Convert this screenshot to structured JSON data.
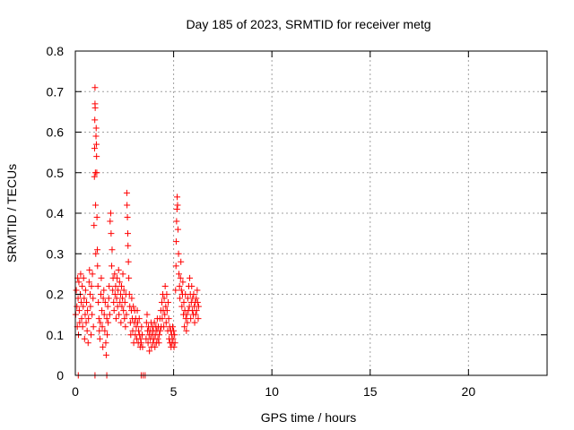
{
  "chart_data": {
    "type": "scatter",
    "title": "Day 185 of 2023, SRMTID for receiver metg",
    "xlabel": "GPS time / hours",
    "ylabel": "SRMTID / TECUs",
    "xlim": [
      0,
      24
    ],
    "ylim": [
      0,
      0.8
    ],
    "x_ticks": [
      0,
      5,
      10,
      15,
      20
    ],
    "x_tick_labels": [
      "0",
      "5",
      "10",
      "15",
      "20"
    ],
    "y_ticks": [
      0,
      0.1,
      0.2,
      0.3,
      0.4,
      0.5,
      0.6,
      0.7,
      0.8
    ],
    "y_tick_labels": [
      "0",
      "0.1",
      "0.2",
      "0.3",
      "0.4",
      "0.5",
      "0.6",
      "0.7",
      "0.8"
    ],
    "grid": true,
    "marker": "+",
    "series": [
      {
        "name": "SRMTID",
        "color": "#ff0000",
        "points": [
          [
            0.02,
            0.15
          ],
          [
            0.05,
            0.21
          ],
          [
            0.08,
            0.17
          ],
          [
            0.1,
            0.12
          ],
          [
            0.12,
            0.24
          ],
          [
            0.14,
            0.19
          ],
          [
            0.16,
            0.1
          ],
          [
            0.18,
            0.23
          ],
          [
            0.2,
            0.16
          ],
          [
            0.22,
            0.13
          ],
          [
            0.25,
            0.2
          ],
          [
            0.27,
            0.25
          ],
          [
            0.3,
            0.18
          ],
          [
            0.32,
            0.14
          ],
          [
            0.35,
            0.22
          ],
          [
            0.37,
            0.12
          ],
          [
            0.4,
            0.17
          ],
          [
            0.42,
            0.24
          ],
          [
            0.45,
            0.19
          ],
          [
            0.47,
            0.09
          ],
          [
            0.5,
            0.15
          ],
          [
            0.52,
            0.21
          ],
          [
            0.55,
            0.13
          ],
          [
            0.57,
            0.18
          ],
          [
            0.6,
            0.11
          ],
          [
            0.62,
            0.16
          ],
          [
            0.65,
            0.08
          ],
          [
            0.67,
            0.14
          ],
          [
            0.7,
            0.23
          ],
          [
            0.72,
            0.26
          ],
          [
            0.75,
            0.2
          ],
          [
            0.77,
            0.17
          ],
          [
            0.8,
            0.1
          ],
          [
            0.82,
            0.22
          ],
          [
            0.85,
            0.15
          ],
          [
            0.87,
            0.25
          ],
          [
            0.9,
            0.19
          ],
          [
            0.92,
            0.12
          ],
          [
            0.95,
            0.37
          ],
          [
            0.97,
            0.49
          ],
          [
            0.98,
            0.56
          ],
          [
            0.99,
            0.63
          ],
          [
            1.0,
            0.67
          ],
          [
            1.0,
            0.71
          ],
          [
            1.01,
            0.66
          ],
          [
            1.02,
            0.5
          ],
          [
            1.03,
            0.42
          ],
          [
            1.04,
            0.3
          ],
          [
            1.05,
            0.59
          ],
          [
            1.06,
            0.61
          ],
          [
            1.07,
            0.57
          ],
          [
            1.08,
            0.54
          ],
          [
            1.09,
            0.5
          ],
          [
            1.1,
            0.39
          ],
          [
            1.12,
            0.31
          ],
          [
            1.13,
            0.27
          ],
          [
            1.15,
            0.22
          ],
          [
            1.17,
            0.18
          ],
          [
            1.2,
            0.14
          ],
          [
            1.22,
            0.11
          ],
          [
            1.25,
            0.09
          ],
          [
            1.27,
            0.13
          ],
          [
            1.3,
            0.2
          ],
          [
            1.32,
            0.24
          ],
          [
            1.35,
            0.16
          ],
          [
            1.37,
            0.12
          ],
          [
            1.4,
            0.07
          ],
          [
            1.42,
            0.19
          ],
          [
            1.45,
            0.21
          ],
          [
            1.47,
            0.15
          ],
          [
            1.5,
            0.11
          ],
          [
            1.52,
            0.18
          ],
          [
            1.55,
            0.08
          ],
          [
            1.57,
            0.05
          ],
          [
            1.6,
            0.14
          ],
          [
            1.62,
            0.1
          ],
          [
            1.65,
            0.17
          ],
          [
            1.67,
            0.13
          ],
          [
            1.7,
            0.19
          ],
          [
            1.72,
            0.22
          ],
          [
            1.75,
            0.15
          ],
          [
            1.77,
            0.38
          ],
          [
            1.8,
            0.4
          ],
          [
            1.82,
            0.35
          ],
          [
            1.85,
            0.27
          ],
          [
            1.87,
            0.31
          ],
          [
            1.9,
            0.21
          ],
          [
            1.92,
            0.24
          ],
          [
            1.95,
            0.18
          ],
          [
            1.97,
            0.16
          ],
          [
            2.0,
            0.25
          ],
          [
            2.02,
            0.2
          ],
          [
            2.05,
            0.22
          ],
          [
            2.07,
            0.14
          ],
          [
            2.1,
            0.19
          ],
          [
            2.12,
            0.24
          ],
          [
            2.15,
            0.17
          ],
          [
            2.17,
            0.21
          ],
          [
            2.2,
            0.26
          ],
          [
            2.22,
            0.15
          ],
          [
            2.25,
            0.23
          ],
          [
            2.27,
            0.18
          ],
          [
            2.3,
            0.2
          ],
          [
            2.32,
            0.13
          ],
          [
            2.35,
            0.22
          ],
          [
            2.37,
            0.17
          ],
          [
            2.4,
            0.19
          ],
          [
            2.42,
            0.25
          ],
          [
            2.45,
            0.16
          ],
          [
            2.47,
            0.21
          ],
          [
            2.5,
            0.14
          ],
          [
            2.52,
            0.18
          ],
          [
            2.55,
            0.12
          ],
          [
            2.57,
            0.2
          ],
          [
            2.6,
            0.15
          ],
          [
            2.62,
            0.45
          ],
          [
            2.63,
            0.42
          ],
          [
            2.65,
            0.39
          ],
          [
            2.67,
            0.35
          ],
          [
            2.68,
            0.32
          ],
          [
            2.7,
            0.28
          ],
          [
            2.72,
            0.24
          ],
          [
            2.75,
            0.2
          ],
          [
            2.77,
            0.17
          ],
          [
            2.8,
            0.13
          ],
          [
            2.82,
            0.1
          ],
          [
            2.85,
            0.16
          ],
          [
            2.87,
            0.19
          ],
          [
            2.9,
            0.14
          ],
          [
            2.92,
            0.11
          ],
          [
            2.95,
            0.17
          ],
          [
            2.97,
            0.08
          ],
          [
            3.0,
            0.13
          ],
          [
            3.02,
            0.16
          ],
          [
            3.05,
            0.1
          ],
          [
            3.07,
            0.14
          ],
          [
            3.1,
            0.12
          ],
          [
            3.12,
            0.09
          ],
          [
            3.15,
            0.16
          ],
          [
            3.17,
            0.13
          ],
          [
            3.2,
            0.08
          ],
          [
            3.22,
            0.11
          ],
          [
            3.25,
            0.14
          ],
          [
            3.27,
            0.1
          ],
          [
            3.3,
            0.07
          ],
          [
            3.32,
            0.09
          ],
          [
            3.35,
            0.08
          ],
          [
            3.37,
            0.12
          ],
          [
            3.4,
            0.1
          ],
          [
            3.42,
            0.07
          ],
          [
            3.6,
            0.09
          ],
          [
            3.62,
            0.13
          ],
          [
            3.65,
            0.15
          ],
          [
            3.67,
            0.11
          ],
          [
            3.7,
            0.08
          ],
          [
            3.72,
            0.12
          ],
          [
            3.75,
            0.1
          ],
          [
            3.77,
            0.06
          ],
          [
            3.8,
            0.11
          ],
          [
            3.82,
            0.09
          ],
          [
            3.85,
            0.13
          ],
          [
            3.87,
            0.07
          ],
          [
            3.9,
            0.1
          ],
          [
            3.92,
            0.12
          ],
          [
            3.95,
            0.08
          ],
          [
            3.97,
            0.11
          ],
          [
            4.0,
            0.09
          ],
          [
            4.02,
            0.13
          ],
          [
            4.05,
            0.07
          ],
          [
            4.07,
            0.1
          ],
          [
            4.1,
            0.12
          ],
          [
            4.12,
            0.08
          ],
          [
            4.15,
            0.11
          ],
          [
            4.17,
            0.14
          ],
          [
            4.2,
            0.09
          ],
          [
            4.22,
            0.12
          ],
          [
            4.25,
            0.08
          ],
          [
            4.27,
            0.1
          ],
          [
            4.3,
            0.14
          ],
          [
            4.32,
            0.11
          ],
          [
            4.35,
            0.16
          ],
          [
            4.37,
            0.12
          ],
          [
            4.4,
            0.18
          ],
          [
            4.42,
            0.14
          ],
          [
            4.45,
            0.2
          ],
          [
            4.47,
            0.16
          ],
          [
            4.5,
            0.12
          ],
          [
            4.52,
            0.19
          ],
          [
            4.55,
            0.15
          ],
          [
            4.57,
            0.22
          ],
          [
            4.6,
            0.17
          ],
          [
            4.62,
            0.13
          ],
          [
            4.65,
            0.2
          ],
          [
            4.67,
            0.16
          ],
          [
            4.7,
            0.11
          ],
          [
            4.72,
            0.18
          ],
          [
            4.75,
            0.14
          ],
          [
            4.77,
            0.09
          ],
          [
            4.8,
            0.12
          ],
          [
            4.82,
            0.08
          ],
          [
            4.85,
            0.11
          ],
          [
            4.87,
            0.07
          ],
          [
            4.9,
            0.1
          ],
          [
            4.92,
            0.08
          ],
          [
            4.95,
            0.12
          ],
          [
            4.97,
            0.09
          ],
          [
            5.0,
            0.11
          ],
          [
            5.02,
            0.07
          ],
          [
            5.05,
            0.1
          ],
          [
            5.07,
            0.08
          ],
          [
            5.1,
            0.21
          ],
          [
            5.12,
            0.27
          ],
          [
            5.13,
            0.33
          ],
          [
            5.15,
            0.38
          ],
          [
            5.17,
            0.41
          ],
          [
            5.18,
            0.44
          ],
          [
            5.2,
            0.42
          ],
          [
            5.22,
            0.36
          ],
          [
            5.25,
            0.3
          ],
          [
            5.27,
            0.25
          ],
          [
            5.3,
            0.22
          ],
          [
            5.32,
            0.19
          ],
          [
            5.35,
            0.24
          ],
          [
            5.37,
            0.28
          ],
          [
            5.4,
            0.21
          ],
          [
            5.42,
            0.17
          ],
          [
            5.45,
            0.2
          ],
          [
            5.47,
            0.23
          ],
          [
            5.5,
            0.15
          ],
          [
            5.52,
            0.18
          ],
          [
            5.55,
            0.12
          ],
          [
            5.57,
            0.16
          ],
          [
            5.6,
            0.2
          ],
          [
            5.62,
            0.14
          ],
          [
            5.65,
            0.11
          ],
          [
            5.67,
            0.15
          ],
          [
            5.7,
            0.13
          ],
          [
            5.72,
            0.19
          ],
          [
            5.75,
            0.16
          ],
          [
            5.77,
            0.22
          ],
          [
            5.8,
            0.17
          ],
          [
            5.82,
            0.24
          ],
          [
            5.85,
            0.2
          ],
          [
            5.87,
            0.14
          ],
          [
            5.9,
            0.18
          ],
          [
            5.92,
            0.22
          ],
          [
            5.95,
            0.16
          ],
          [
            5.97,
            0.19
          ],
          [
            6.0,
            0.15
          ],
          [
            6.02,
            0.2
          ],
          [
            6.05,
            0.17
          ],
          [
            6.07,
            0.13
          ],
          [
            6.1,
            0.18
          ],
          [
            6.12,
            0.15
          ],
          [
            6.15,
            0.19
          ],
          [
            6.17,
            0.16
          ],
          [
            6.2,
            0.21
          ],
          [
            6.22,
            0.18
          ],
          [
            6.25,
            0.14
          ],
          [
            6.27,
            0.17
          ],
          [
            0.15,
            0.0
          ],
          [
            1.0,
            0.0
          ],
          [
            1.6,
            0.0
          ],
          [
            3.35,
            0.0
          ],
          [
            3.45,
            0.0
          ],
          [
            3.55,
            0.0
          ]
        ]
      }
    ]
  }
}
